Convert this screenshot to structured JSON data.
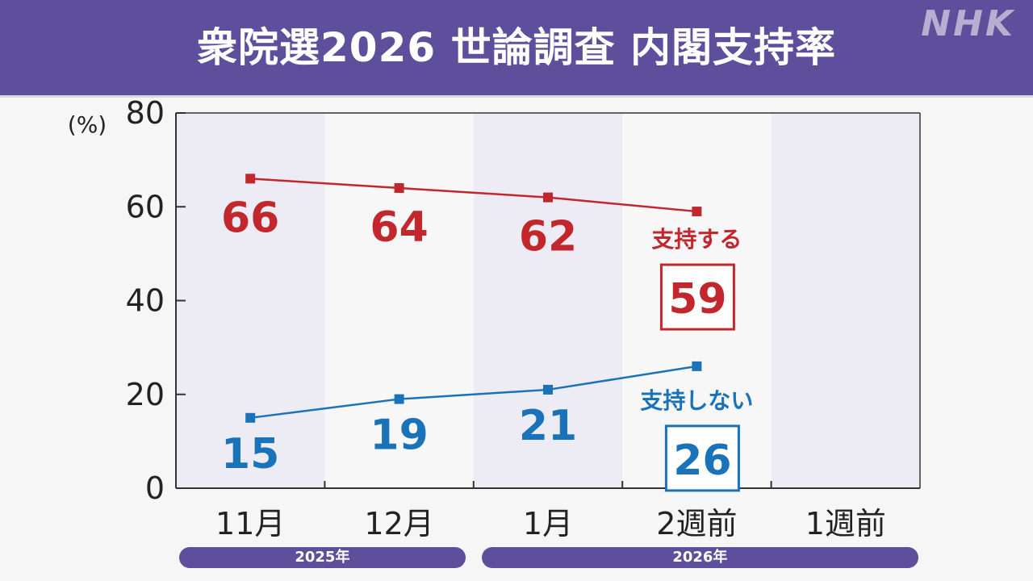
{
  "header": {
    "title": "衆院選2026 世論調査 内閣支持率",
    "logo": "NHK",
    "background": "#5d4f9b"
  },
  "chart_data": {
    "type": "line",
    "title": "衆院選2026 世論調査 内閣支持率",
    "ylabel": "(%)",
    "xlabel": "",
    "ylim": [
      0,
      80
    ],
    "yticks": [
      0,
      20,
      40,
      60,
      80
    ],
    "categories": [
      "11月",
      "12月",
      "1月",
      "2週前",
      "1週前"
    ],
    "year_groups": [
      {
        "label": "2025年",
        "categories": [
          "11月",
          "12月"
        ]
      },
      {
        "label": "2026年",
        "categories": [
          "1月",
          "2週前",
          "1週前"
        ]
      }
    ],
    "series": [
      {
        "name": "支持する",
        "color": "#c1272d",
        "values": [
          66,
          64,
          62,
          59,
          null
        ]
      },
      {
        "name": "支持しない",
        "color": "#1a73b8",
        "values": [
          15,
          19,
          21,
          26,
          null
        ]
      }
    ],
    "grid": false,
    "alternating_column_shading": true
  }
}
